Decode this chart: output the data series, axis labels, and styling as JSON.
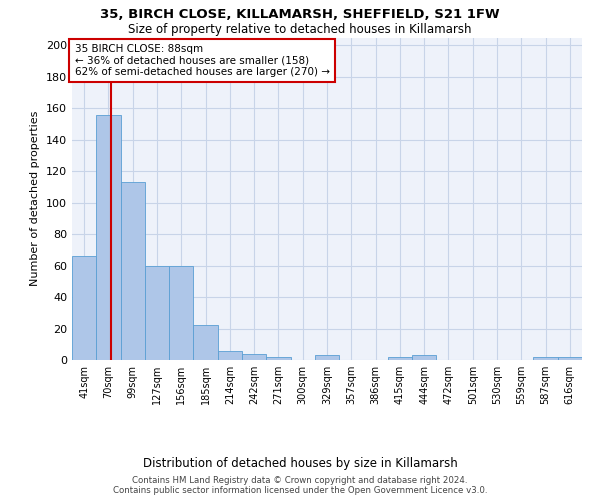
{
  "title_line1": "35, BIRCH CLOSE, KILLAMARSH, SHEFFIELD, S21 1FW",
  "title_line2": "Size of property relative to detached houses in Killamarsh",
  "xlabel": "Distribution of detached houses by size in Killamarsh",
  "ylabel": "Number of detached properties",
  "bar_color": "#aec6e8",
  "bar_edge_color": "#5a9fd4",
  "grid_color": "#c8d4e8",
  "background_color": "#eef2fa",
  "annotation_text": "35 BIRCH CLOSE: 88sqm\n← 36% of detached houses are smaller (158)\n62% of semi-detached houses are larger (270) →",
  "categories": [
    "41sqm",
    "70sqm",
    "99sqm",
    "127sqm",
    "156sqm",
    "185sqm",
    "214sqm",
    "242sqm",
    "271sqm",
    "300sqm",
    "329sqm",
    "357sqm",
    "386sqm",
    "415sqm",
    "444sqm",
    "472sqm",
    "501sqm",
    "530sqm",
    "559sqm",
    "587sqm",
    "616sqm"
  ],
  "values": [
    66,
    156,
    113,
    60,
    60,
    22,
    6,
    4,
    2,
    0,
    3,
    0,
    0,
    2,
    3,
    0,
    0,
    0,
    0,
    2,
    2
  ],
  "ylim": [
    0,
    205
  ],
  "yticks": [
    0,
    20,
    40,
    60,
    80,
    100,
    120,
    140,
    160,
    180,
    200
  ],
  "footer_line1": "Contains HM Land Registry data © Crown copyright and database right 2024.",
  "footer_line2": "Contains public sector information licensed under the Open Government Licence v3.0."
}
